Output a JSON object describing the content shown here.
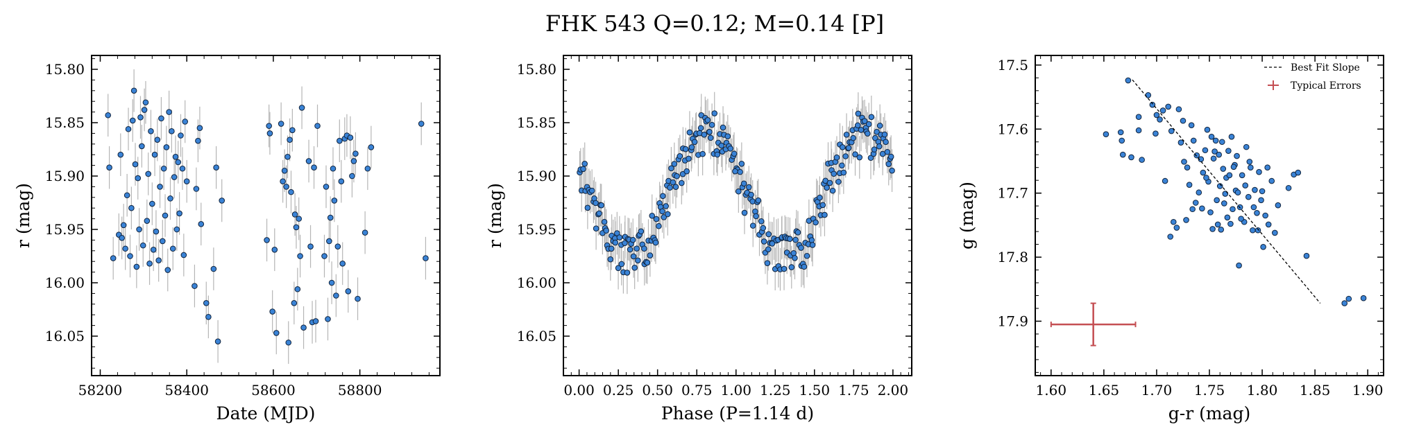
{
  "figure": {
    "title": "FHK 543  Q=0.12; M=0.14 [P]",
    "colors": {
      "point_fill": "#3a83d6",
      "point_edge": "#10223a",
      "errorbar": "#b5b5b5",
      "fit_line": "#000000",
      "typical_error": "#c44e52"
    }
  },
  "chart_data": [
    {
      "type": "scatter",
      "panel": "time-series",
      "xlabel": "Date (MJD)",
      "ylabel": "r (mag)",
      "xlim": [
        58180,
        58985
      ],
      "ylim": [
        16.087,
        15.787
      ],
      "y_inverted": true,
      "xticks": [
        58200,
        58400,
        58600,
        58800
      ],
      "xtick_labels": [
        "58200",
        "58400",
        "58600",
        "58800"
      ],
      "yticks": [
        15.8,
        15.85,
        15.9,
        15.95,
        16.0,
        16.05
      ],
      "ytick_labels": [
        "15.80",
        "15.85",
        "15.90",
        "15.95",
        "16.00",
        "16.05"
      ],
      "y_error": 0.02,
      "points": [
        [
          58218,
          15.843
        ],
        [
          58221,
          15.892
        ],
        [
          58230,
          15.977
        ],
        [
          58243,
          15.955
        ],
        [
          58247,
          15.88
        ],
        [
          58250,
          15.958
        ],
        [
          58254,
          15.946
        ],
        [
          58258,
          15.968
        ],
        [
          58262,
          15.918
        ],
        [
          58265,
          15.856
        ],
        [
          58269,
          15.975
        ],
        [
          58272,
          15.93
        ],
        [
          58275,
          15.848
        ],
        [
          58278,
          15.82
        ],
        [
          58281,
          15.889
        ],
        [
          58284,
          15.985
        ],
        [
          58287,
          15.902
        ],
        [
          58290,
          15.95
        ],
        [
          58293,
          15.845
        ],
        [
          58296,
          15.872
        ],
        [
          58299,
          15.965
        ],
        [
          58302,
          15.838
        ],
        [
          58305,
          15.831
        ],
        [
          58308,
          15.942
        ],
        [
          58311,
          15.898
        ],
        [
          58314,
          15.982
        ],
        [
          58317,
          15.858
        ],
        [
          58320,
          15.926
        ],
        [
          58323,
          15.969
        ],
        [
          58326,
          15.88
        ],
        [
          58329,
          15.952
        ],
        [
          58332,
          15.866
        ],
        [
          58335,
          15.979
        ],
        [
          58338,
          15.91
        ],
        [
          58341,
          15.846
        ],
        [
          58344,
          15.961
        ],
        [
          58347,
          15.893
        ],
        [
          58350,
          15.937
        ],
        [
          58353,
          15.873
        ],
        [
          58356,
          15.988
        ],
        [
          58359,
          15.84
        ],
        [
          58362,
          15.921
        ],
        [
          58365,
          15.858
        ],
        [
          58368,
          15.968
        ],
        [
          58371,
          15.901
        ],
        [
          58374,
          15.882
        ],
        [
          58377,
          15.95
        ],
        [
          58380,
          15.887
        ],
        [
          58383,
          15.935
        ],
        [
          58386,
          15.862
        ],
        [
          58390,
          15.893
        ],
        [
          58393,
          15.974
        ],
        [
          58396,
          15.849
        ],
        [
          58400,
          15.905
        ],
        [
          58418,
          16.003
        ],
        [
          58422,
          15.912
        ],
        [
          58426,
          15.867
        ],
        [
          58430,
          15.855
        ],
        [
          58433,
          15.945
        ],
        [
          58445,
          16.019
        ],
        [
          58450,
          16.032
        ],
        [
          58462,
          15.987
        ],
        [
          58468,
          15.892
        ],
        [
          58472,
          16.055
        ],
        [
          58481,
          15.923
        ],
        [
          58585,
          15.96
        ],
        [
          58590,
          15.853
        ],
        [
          58592,
          15.86
        ],
        [
          58598,
          16.027
        ],
        [
          58603,
          15.969
        ],
        [
          58607,
          16.047
        ],
        [
          58618,
          15.851
        ],
        [
          58622,
          15.905
        ],
        [
          58626,
          15.895
        ],
        [
          58630,
          15.91
        ],
        [
          58633,
          15.882
        ],
        [
          58635,
          16.056
        ],
        [
          58638,
          15.866
        ],
        [
          58641,
          15.915
        ],
        [
          58644,
          15.857
        ],
        [
          58648,
          16.019
        ],
        [
          58650,
          15.936
        ],
        [
          58653,
          15.948
        ],
        [
          58656,
          16.006
        ],
        [
          58659,
          15.94
        ],
        [
          58662,
          15.975
        ],
        [
          58666,
          15.836
        ],
        [
          58670,
          16.042
        ],
        [
          58682,
          15.886
        ],
        [
          58686,
          15.966
        ],
        [
          58690,
          16.037
        ],
        [
          58694,
          15.892
        ],
        [
          58698,
          16.036
        ],
        [
          58702,
          15.853
        ],
        [
          58718,
          15.975
        ],
        [
          58722,
          15.91
        ],
        [
          58726,
          16.034
        ],
        [
          58729,
          15.961
        ],
        [
          58732,
          15.939
        ],
        [
          58735,
          16.0
        ],
        [
          58738,
          15.893
        ],
        [
          58741,
          15.923
        ],
        [
          58745,
          16.012
        ],
        [
          58749,
          15.966
        ],
        [
          58753,
          15.867
        ],
        [
          58757,
          15.905
        ],
        [
          58760,
          15.982
        ],
        [
          58765,
          15.865
        ],
        [
          58770,
          15.862
        ],
        [
          58773,
          16.008
        ],
        [
          58778,
          15.864
        ],
        [
          58782,
          15.9
        ],
        [
          58786,
          15.886
        ],
        [
          58790,
          15.879
        ],
        [
          58795,
          16.015
        ],
        [
          58812,
          15.953
        ],
        [
          58818,
          15.893
        ],
        [
          58826,
          15.873
        ],
        [
          58942,
          15.851
        ],
        [
          58952,
          15.977
        ]
      ]
    },
    {
      "type": "scatter",
      "panel": "phase-folded",
      "xlabel": "Phase (P=1.14 d)",
      "ylabel": "r (mag)",
      "xlim": [
        -0.1,
        2.12
      ],
      "ylim": [
        16.087,
        15.787
      ],
      "y_inverted": true,
      "xticks": [
        0,
        0.25,
        0.5,
        0.75,
        1.0,
        1.25,
        1.5,
        1.75,
        2.0
      ],
      "xtick_labels": [
        "0.00",
        "0.25",
        "0.50",
        "0.75",
        "1.00",
        "1.25",
        "1.50",
        "1.75",
        "2.00"
      ],
      "yticks": [
        15.8,
        15.85,
        15.9,
        15.95,
        16.0,
        16.05
      ],
      "ytick_labels": [
        "15.80",
        "15.85",
        "15.90",
        "15.95",
        "16.00",
        "16.05"
      ],
      "y_error": 0.02,
      "model": {
        "mean": 15.918,
        "amplitude": 0.059,
        "min_phase": 0.32,
        "period_d": 1.14,
        "phases_shown": [
          0,
          2
        ]
      }
    },
    {
      "type": "scatter",
      "panel": "color-magnitude",
      "xlabel": "g-r (mag)",
      "ylabel": "g (mag)",
      "xlim": [
        1.585,
        1.915
      ],
      "ylim": [
        17.985,
        17.485
      ],
      "y_inverted": true,
      "xticks": [
        1.6,
        1.65,
        1.7,
        1.75,
        1.8,
        1.85,
        1.9
      ],
      "xtick_labels": [
        "1.60",
        "1.65",
        "1.70",
        "1.75",
        "1.80",
        "1.85",
        "1.90"
      ],
      "yticks": [
        17.5,
        17.6,
        17.7,
        17.8,
        17.9
      ],
      "ytick_labels": [
        "17.5",
        "17.6",
        "17.7",
        "17.8",
        "17.9"
      ],
      "best_fit": {
        "x": [
          1.677,
          1.855
        ],
        "y": [
          17.523,
          17.872
        ]
      },
      "typical_error": {
        "x": 1.64,
        "y": 17.905,
        "xerr": 0.04,
        "yerr": 0.033
      },
      "legend": {
        "position": "upper right",
        "entries": [
          "Best Fit Slope",
          "Typical Errors"
        ]
      },
      "points": [
        [
          1.673,
          17.524
        ],
        [
          1.652,
          17.608
        ],
        [
          1.666,
          17.605
        ],
        [
          1.667,
          17.618
        ],
        [
          1.668,
          17.64
        ],
        [
          1.676,
          17.644
        ],
        [
          1.683,
          17.602
        ],
        [
          1.686,
          17.648
        ],
        [
          1.683,
          17.581
        ],
        [
          1.692,
          17.547
        ],
        [
          1.696,
          17.562
        ],
        [
          1.7,
          17.578
        ],
        [
          1.703,
          17.585
        ],
        [
          1.706,
          17.571
        ],
        [
          1.711,
          17.565
        ],
        [
          1.714,
          17.603
        ],
        [
          1.721,
          17.569
        ],
        [
          1.725,
          17.587
        ],
        [
          1.699,
          17.607
        ],
        [
          1.708,
          17.681
        ],
        [
          1.713,
          17.768
        ],
        [
          1.719,
          17.754
        ],
        [
          1.716,
          17.745
        ],
        [
          1.723,
          17.621
        ],
        [
          1.726,
          17.651
        ],
        [
          1.729,
          17.66
        ],
        [
          1.731,
          17.687
        ],
        [
          1.733,
          17.594
        ],
        [
          1.735,
          17.618
        ],
        [
          1.737,
          17.715
        ],
        [
          1.74,
          17.699
        ],
        [
          1.742,
          17.647
        ],
        [
          1.744,
          17.668
        ],
        [
          1.746,
          17.633
        ],
        [
          1.748,
          17.601
        ],
        [
          1.749,
          17.682
        ],
        [
          1.751,
          17.73
        ],
        [
          1.752,
          17.612
        ],
        [
          1.754,
          17.646
        ],
        [
          1.755,
          17.635
        ],
        [
          1.757,
          17.711
        ],
        [
          1.758,
          17.749
        ],
        [
          1.76,
          17.689
        ],
        [
          1.761,
          17.757
        ],
        [
          1.762,
          17.62
        ],
        [
          1.763,
          17.662
        ],
        [
          1.765,
          17.701
        ],
        [
          1.766,
          17.676
        ],
        [
          1.767,
          17.738
        ],
        [
          1.768,
          17.634
        ],
        [
          1.77,
          17.748
        ],
        [
          1.771,
          17.612
        ],
        [
          1.772,
          17.725
        ],
        [
          1.774,
          17.656
        ],
        [
          1.775,
          17.696
        ],
        [
          1.776,
          17.642
        ],
        [
          1.778,
          17.813
        ],
        [
          1.779,
          17.722
        ],
        [
          1.781,
          17.672
        ],
        [
          1.783,
          17.745
        ],
        [
          1.785,
          17.628
        ],
        [
          1.787,
          17.706
        ],
        [
          1.789,
          17.66
        ],
        [
          1.791,
          17.758
        ],
        [
          1.793,
          17.695
        ],
        [
          1.795,
          17.731
        ],
        [
          1.797,
          17.667
        ],
        [
          1.799,
          17.711
        ],
        [
          1.801,
          17.784
        ],
        [
          1.803,
          17.735
        ],
        [
          1.806,
          17.749
        ],
        [
          1.809,
          17.681
        ],
        [
          1.812,
          17.762
        ],
        [
          1.815,
          17.719
        ],
        [
          1.825,
          17.692
        ],
        [
          1.83,
          17.671
        ],
        [
          1.834,
          17.668
        ],
        [
          1.842,
          17.798
        ],
        [
          1.878,
          17.872
        ],
        [
          1.882,
          17.865
        ],
        [
          1.896,
          17.864
        ],
        [
          1.728,
          17.742
        ],
        [
          1.734,
          17.725
        ],
        [
          1.738,
          17.641
        ],
        [
          1.743,
          17.724
        ],
        [
          1.747,
          17.676
        ],
        [
          1.753,
          17.756
        ],
        [
          1.756,
          17.618
        ],
        [
          1.759,
          17.64
        ],
        [
          1.764,
          17.716
        ],
        [
          1.769,
          17.672
        ],
        [
          1.773,
          17.659
        ],
        [
          1.777,
          17.699
        ],
        [
          1.78,
          17.74
        ],
        [
          1.784,
          17.688
        ],
        [
          1.788,
          17.651
        ],
        [
          1.792,
          17.722
        ],
        [
          1.796,
          17.758
        ],
        [
          1.8,
          17.697
        ],
        [
          1.805,
          17.66
        ]
      ]
    }
  ]
}
